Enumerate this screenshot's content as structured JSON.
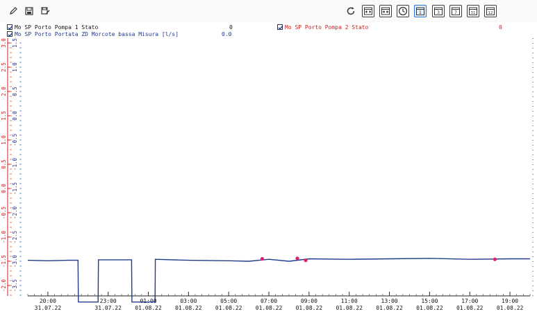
{
  "toolbar": {
    "left": [
      {
        "name": "edit-icon"
      },
      {
        "name": "save-icon"
      },
      {
        "name": "save-as-icon"
      }
    ],
    "right": [
      {
        "name": "refresh-icon"
      },
      {
        "name": "zoom-range-icon"
      },
      {
        "name": "fit-range-icon"
      },
      {
        "name": "clock-icon"
      },
      {
        "name": "day-1-icon",
        "label": "1",
        "active": true
      },
      {
        "name": "day-3-icon",
        "label": "3"
      },
      {
        "name": "day-7-icon",
        "label": "7"
      },
      {
        "name": "day-31-icon",
        "label": "31"
      },
      {
        "name": "month-12-icon",
        "label": "12"
      }
    ]
  },
  "legend": {
    "series": [
      {
        "label": "Mo SP Porto Pompa 1 Stato",
        "value": "0",
        "color": "#111111",
        "checked": true
      },
      {
        "label": "Mo SP Porto Portata ZD Morcote bassa Misura [l/s]",
        "value": "0.0",
        "color": "#1a3a8f",
        "checked": true
      },
      {
        "label": "Mo SP Porto Pompa 2 Stato",
        "value": "0",
        "color": "#d11a1a",
        "checked": true
      }
    ]
  },
  "colors": {
    "flow_line": "#1f3b8c",
    "marker": "#e0206e",
    "left_axis": "#d11a1a",
    "left_axis_inner": "#1f3b8c",
    "right_axis": "#1f3b8c"
  },
  "chart_data": {
    "type": "line",
    "x_ticks": [
      {
        "time": "20:00",
        "date": "31.07.22"
      },
      {
        "time": "23:00",
        "date": "31.07.22"
      },
      {
        "time": "01:00",
        "date": "01.08.22"
      },
      {
        "time": "03:00",
        "date": "01.08.22"
      },
      {
        "time": "05:00",
        "date": "01.08.22"
      },
      {
        "time": "07:00",
        "date": "01.08.22"
      },
      {
        "time": "09:00",
        "date": "01.08.22"
      },
      {
        "time": "11:00",
        "date": "01.08.22"
      },
      {
        "time": "13:00",
        "date": "01.08.22"
      },
      {
        "time": "15:00",
        "date": "01.08.22"
      },
      {
        "time": "17:00",
        "date": "01.08.22"
      },
      {
        "time": "19:00",
        "date": "01.08.22"
      }
    ],
    "left_axis_red_labels": [
      "3.0",
      "2.5",
      "2.0",
      "1.5",
      "1.0",
      "0.5",
      "0.0",
      "-0.5",
      "-1.0",
      "-1.5",
      "-2.0"
    ],
    "left_axis_blue_labels": [
      "1.5",
      "1.0",
      "0.5",
      "0.0",
      "-0.5",
      "-1.0",
      "-1.5",
      "-2.0",
      "-2.5",
      "-3.0",
      "-3.5"
    ],
    "x_range": [
      "31.07.22 19:00",
      "01.08.22 20:00"
    ],
    "flow_series": {
      "name": "Mo SP Porto Portata ZD Morcote bassa Misura [l/s]",
      "points": [
        [
          "31.07.22 19:00",
          -2.98
        ],
        [
          "31.07.22 20:00",
          -2.99
        ],
        [
          "31.07.22 21:00",
          -2.98
        ],
        [
          "31.07.22 21:30",
          -2.98
        ],
        [
          "31.07.22 21:31",
          -3.84
        ],
        [
          "31.07.22 22:30",
          -3.84
        ],
        [
          "31.07.22 22:31",
          -2.97
        ],
        [
          "31.07.22 23:30",
          -2.97
        ],
        [
          "01.08.22 00:10",
          -2.97
        ],
        [
          "01.08.22 00:11",
          -3.84
        ],
        [
          "01.08.22 01:20",
          -3.84
        ],
        [
          "01.08.22 01:21",
          -2.96
        ],
        [
          "01.08.22 03:00",
          -2.98
        ],
        [
          "01.08.22 05:00",
          -2.99
        ],
        [
          "01.08.22 06:00",
          -3.0
        ],
        [
          "01.08.22 07:00",
          -2.96
        ],
        [
          "01.08.22 08:00",
          -3.0
        ],
        [
          "01.08.22 09:00",
          -2.95
        ],
        [
          "01.08.22 11:00",
          -2.96
        ],
        [
          "01.08.22 13:00",
          -2.95
        ],
        [
          "01.08.22 15:00",
          -2.94
        ],
        [
          "01.08.22 17:00",
          -2.96
        ],
        [
          "01.08.22 19:00",
          -2.95
        ],
        [
          "01.08.22 20:00",
          -2.95
        ]
      ]
    },
    "markers": [
      [
        "01.08.22 06:40",
        -2.95
      ],
      [
        "01.08.22 08:25",
        -2.94
      ],
      [
        "01.08.22 08:50",
        -2.98
      ],
      [
        "01.08.22 18:15",
        -2.96
      ]
    ]
  }
}
